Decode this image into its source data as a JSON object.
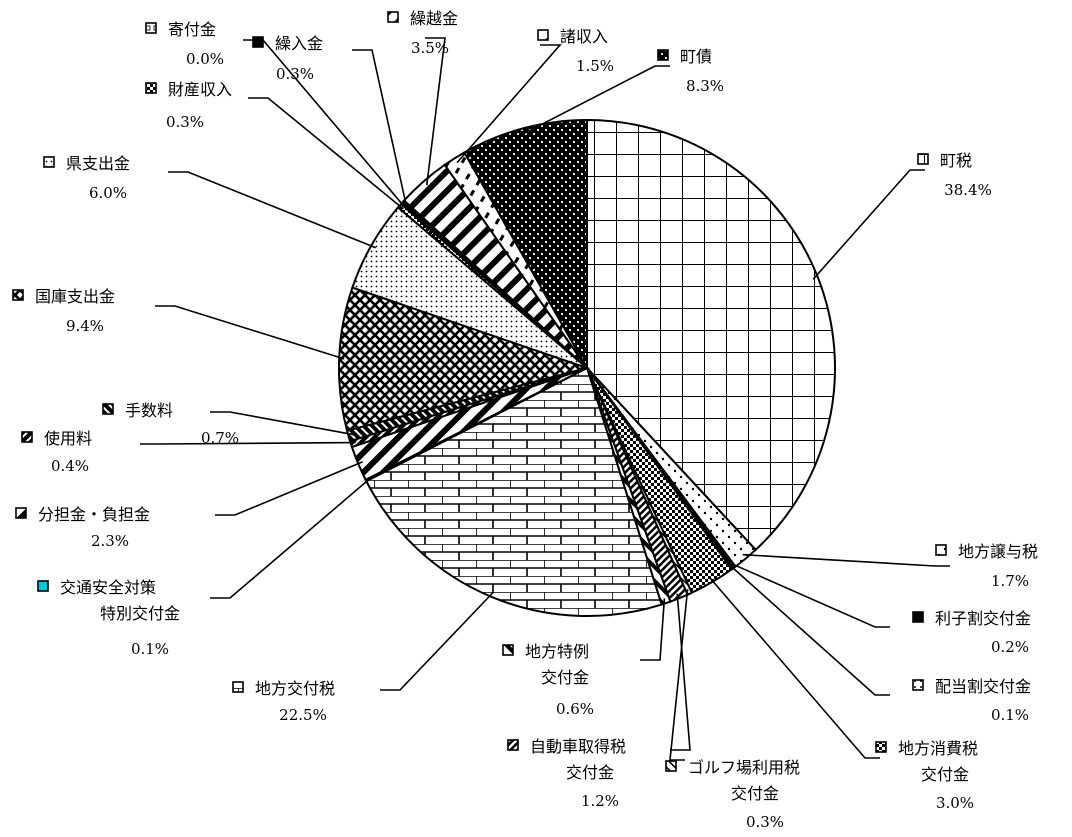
{
  "chart_data": {
    "type": "pie",
    "title": "",
    "start_direction": "12 o'clock",
    "direction": "clockwise",
    "slices": [
      {
        "label": "町税",
        "value": 38.4,
        "value_label": "38.4%",
        "pattern": "grid"
      },
      {
        "label": "地方譲与税",
        "value": 1.7,
        "value_label": "1.7%",
        "pattern": "sparse-dots"
      },
      {
        "label": "利子割交付金",
        "value": 0.2,
        "value_label": "0.2%",
        "pattern": "solid-black"
      },
      {
        "label": "配当割交付金",
        "value": 0.1,
        "value_label": "0.1%",
        "pattern": "dots"
      },
      {
        "label": "地方消費税交付金",
        "value": 3.0,
        "value_label": "3.0%",
        "pattern": "checker"
      },
      {
        "label": "ゴルフ場利用税交付金",
        "value": 0.3,
        "value_label": "0.3%",
        "pattern": "diagonal-light"
      },
      {
        "label": "自動車取得税交付金",
        "value": 1.2,
        "value_label": "1.2%",
        "pattern": "diagonal-dense"
      },
      {
        "label": "地方特例交付金",
        "value": 0.6,
        "value_label": "0.6%",
        "pattern": "diagonal-wide"
      },
      {
        "label": "地方交付税",
        "value": 22.5,
        "value_label": "22.5%",
        "pattern": "brick"
      },
      {
        "label": "交通安全対策特別交付金",
        "value": 0.1,
        "value_label": "0.1%",
        "pattern": "cyan"
      },
      {
        "label": "分担金・負担金",
        "value": 2.3,
        "value_label": "2.3%",
        "pattern": "diagonal-thick"
      },
      {
        "label": "使用料",
        "value": 0.4,
        "value_label": "0.4%",
        "pattern": "dark-diagonal"
      },
      {
        "label": "手数料",
        "value": 0.7,
        "value_label": "0.7%",
        "pattern": "dark-diagonal2"
      },
      {
        "label": "国庫支出金",
        "value": 9.4,
        "value_label": "9.4%",
        "pattern": "dark-checker"
      },
      {
        "label": "県支出金",
        "value": 6.0,
        "value_label": "6.0%",
        "pattern": "fine-dots"
      },
      {
        "label": "財産収入",
        "value": 0.3,
        "value_label": "0.3%",
        "pattern": "checker"
      },
      {
        "label": "寄付金",
        "value": 0.0,
        "value_label": "0.0%",
        "pattern": "light"
      },
      {
        "label": "繰入金",
        "value": 0.3,
        "value_label": "0.3%",
        "pattern": "solid-black"
      },
      {
        "label": "繰越金",
        "value": 3.5,
        "value_label": "3.5%",
        "pattern": "diagonal-thick"
      },
      {
        "label": "諸収入",
        "value": 1.5,
        "value_label": "1.5%",
        "pattern": "dashes"
      },
      {
        "label": "町債",
        "value": 8.3,
        "value_label": "8.3%",
        "pattern": "dark-dots"
      }
    ],
    "labels": [
      {
        "slice": 0,
        "lines": [
          "町税"
        ],
        "value": "38.4%"
      },
      {
        "slice": 1,
        "lines": [
          "地方譲与税"
        ],
        "value": "1.7%"
      },
      {
        "slice": 2,
        "lines": [
          "利子割交付金"
        ],
        "value": "0.2%"
      },
      {
        "slice": 3,
        "lines": [
          "配当割交付金"
        ],
        "value": "0.1%"
      },
      {
        "slice": 4,
        "lines": [
          "地方消費税",
          "交付金"
        ],
        "value": "3.0%"
      },
      {
        "slice": 5,
        "lines": [
          "ゴルフ場利用税",
          "交付金"
        ],
        "value": "0.3%"
      },
      {
        "slice": 6,
        "lines": [
          "自動車取得税",
          "交付金"
        ],
        "value": "1.2%"
      },
      {
        "slice": 7,
        "lines": [
          "地方特例",
          "交付金"
        ],
        "value": "0.6%"
      },
      {
        "slice": 8,
        "lines": [
          "地方交付税"
        ],
        "value": "22.5%"
      },
      {
        "slice": 9,
        "lines": [
          "交通安全対策",
          "特別交付金"
        ],
        "value": "0.1%"
      },
      {
        "slice": 10,
        "lines": [
          "分担金・負担金"
        ],
        "value": "2.3%"
      },
      {
        "slice": 11,
        "lines": [
          "使用料"
        ],
        "value": "0.4%"
      },
      {
        "slice": 12,
        "lines": [
          "手数料"
        ],
        "value": "0.7%"
      },
      {
        "slice": 13,
        "lines": [
          "国庫支出金"
        ],
        "value": "9.4%"
      },
      {
        "slice": 14,
        "lines": [
          "県支出金"
        ],
        "value": "6.0%"
      },
      {
        "slice": 15,
        "lines": [
          "財産収入"
        ],
        "value": "0.3%"
      },
      {
        "slice": 16,
        "lines": [
          "寄付金"
        ],
        "value": "0.0%"
      },
      {
        "slice": 17,
        "lines": [
          "繰入金"
        ],
        "value": "0.3%"
      },
      {
        "slice": 18,
        "lines": [
          "繰越金"
        ],
        "value": "3.5%"
      },
      {
        "slice": 19,
        "lines": [
          "諸収入"
        ],
        "value": "1.5%"
      },
      {
        "slice": 20,
        "lines": [
          "町債"
        ],
        "value": "8.3%"
      }
    ]
  }
}
